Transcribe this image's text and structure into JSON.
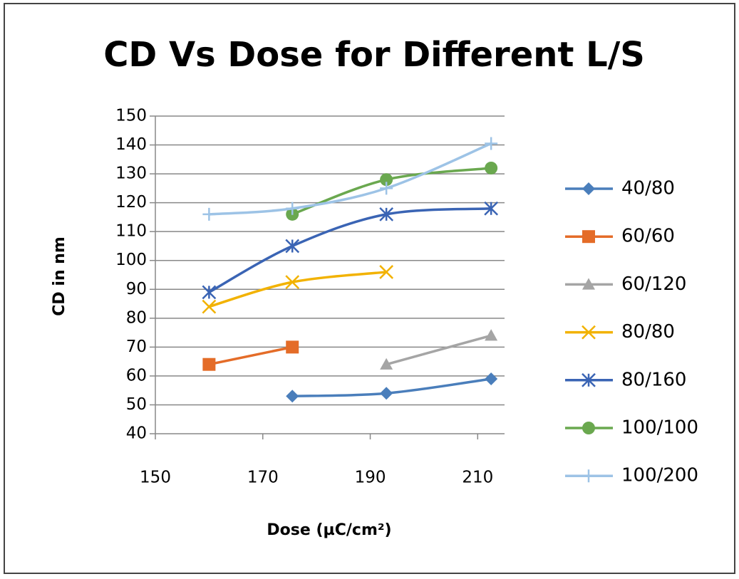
{
  "chart_data": {
    "type": "scatter",
    "title": "CD Vs Dose for Different L/S",
    "xlabel": "Dose (µC/cm²)",
    "ylabel": "CD in  nm",
    "xlim": [
      150,
      215
    ],
    "xticks": [
      150,
      170,
      190,
      210
    ],
    "ylim": [
      40,
      150
    ],
    "yticks": [
      40,
      50,
      60,
      70,
      80,
      90,
      100,
      110,
      120,
      130,
      140,
      150
    ],
    "grid": true,
    "smooth": true,
    "legend": "right",
    "series": [
      {
        "name": "40/80",
        "color": "#4A7EBB",
        "marker": "diamond",
        "x": [
          175.5,
          193,
          212.5
        ],
        "values": [
          53,
          54,
          59
        ]
      },
      {
        "name": "60/60",
        "color": "#E46C28",
        "marker": "square",
        "x": [
          160,
          175.5
        ],
        "values": [
          64,
          70
        ]
      },
      {
        "name": "60/120",
        "color": "#A5A5A5",
        "marker": "triangle",
        "x": [
          193,
          212.5
        ],
        "values": [
          64,
          74
        ]
      },
      {
        "name": "80/80",
        "color": "#F2B200",
        "marker": "x",
        "x": [
          160,
          175.5,
          193
        ],
        "values": [
          84,
          92.5,
          96
        ]
      },
      {
        "name": "80/160",
        "color": "#3A64B4",
        "marker": "star",
        "x": [
          160,
          175.5,
          193,
          212.5
        ],
        "values": [
          89,
          105,
          116,
          118
        ]
      },
      {
        "name": "100/100",
        "color": "#6AA84F",
        "marker": "circle",
        "x": [
          175.5,
          193,
          212.5
        ],
        "values": [
          116,
          128,
          132
        ]
      },
      {
        "name": "100/200",
        "color": "#9DC3E6",
        "marker": "plus",
        "x": [
          160,
          175.5,
          193,
          212.5
        ],
        "values": [
          116,
          118,
          125,
          140.5
        ]
      }
    ]
  }
}
